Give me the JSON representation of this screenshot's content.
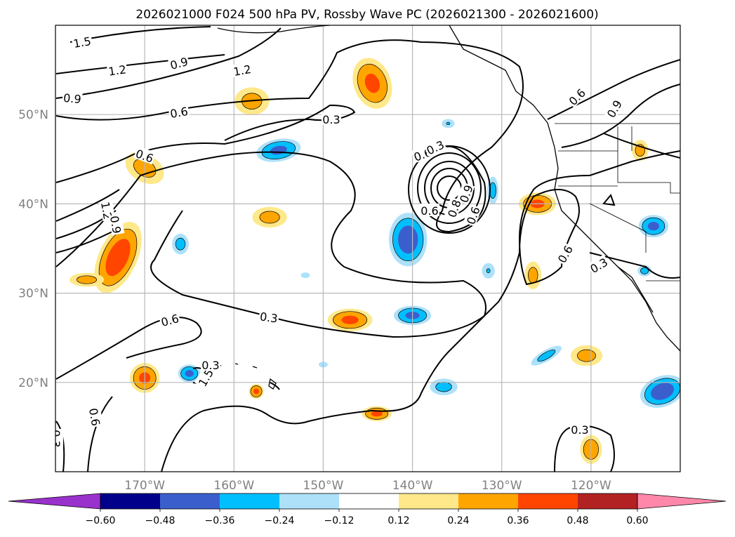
{
  "chart_data": {
    "type": "map-contour",
    "title": "2026021000 F024 500 hPa PV, Rossby Wave PC (2026021300 - 2026021600)",
    "xlim": [
      -180,
      -110
    ],
    "ylim": [
      10,
      60
    ],
    "grid": true,
    "x_ticks": [
      {
        "value": -170,
        "label": "170°W"
      },
      {
        "value": -160,
        "label": "160°W"
      },
      {
        "value": -150,
        "label": "150°W"
      },
      {
        "value": -140,
        "label": "140°W"
      },
      {
        "value": -130,
        "label": "130°W"
      },
      {
        "value": -120,
        "label": "120°W"
      }
    ],
    "y_ticks": [
      {
        "value": 20,
        "label": "20°N"
      },
      {
        "value": 30,
        "label": "30°N"
      },
      {
        "value": 40,
        "label": "40°N"
      },
      {
        "value": 50,
        "label": "50°N"
      }
    ],
    "colorbar": {
      "extend": "both",
      "under_color": "#9932CC",
      "over_color": "#FF88AA",
      "colors": [
        "#00008B",
        "#3A5FCD",
        "#00BFFF",
        "#ADE1FA",
        "#FFFFFF",
        "#FFE88A",
        "#FFA500",
        "#FF4500",
        "#B22222"
      ],
      "ticks": [
        "−0.60",
        "−0.48",
        "−0.36",
        "−0.24",
        "−0.12",
        "0.12",
        "0.24",
        "0.36",
        "0.48",
        "0.60"
      ]
    },
    "contour_labels": [
      "1.5",
      "1.2",
      "0.9",
      "1.2",
      "0.9",
      "0.6",
      "0.3",
      "0.6",
      "0.6",
      "1.2",
      "0.9",
      "0.6",
      "0.3",
      "0.6",
      "0.3",
      "1.5",
      "0.8",
      "0.9",
      "0.6",
      "0.3",
      "0.6",
      "0.3",
      "0.6",
      "0.9",
      "0.3",
      "0.6",
      "0.3"
    ],
    "pv_anomalies": [
      {
        "lon": -144.5,
        "lat": 53.5,
        "rx": 2.5,
        "ry": 3.5,
        "value": 0.4,
        "rot": -20
      },
      {
        "lon": -158,
        "lat": 51.5,
        "rx": 2.5,
        "ry": 2,
        "value": 0.3,
        "rot": 0
      },
      {
        "lon": -170,
        "lat": 44,
        "rx": 3,
        "ry": 2,
        "value": 0.3,
        "rot": 30
      },
      {
        "lon": -173,
        "lat": 34,
        "rx": 2.5,
        "ry": 5,
        "value": 0.45,
        "rot": 25
      },
      {
        "lon": -176.5,
        "lat": 31.5,
        "rx": 2.5,
        "ry": 1,
        "value": 0.3,
        "rot": 0
      },
      {
        "lon": -156,
        "lat": 38.5,
        "rx": 2.5,
        "ry": 1.5,
        "value": 0.3,
        "rot": 0
      },
      {
        "lon": -147,
        "lat": 27,
        "rx": 3,
        "ry": 1.5,
        "value": 0.4,
        "rot": 0
      },
      {
        "lon": -170,
        "lat": 20.5,
        "rx": 2,
        "ry": 2,
        "value": 0.4,
        "rot": 0
      },
      {
        "lon": -157.5,
        "lat": 19,
        "rx": 1,
        "ry": 1,
        "value": 0.4,
        "rot": 0
      },
      {
        "lon": -144,
        "lat": 16.5,
        "rx": 2,
        "ry": 1,
        "value": 0.4,
        "rot": 0
      },
      {
        "lon": -126,
        "lat": 40,
        "rx": 2.5,
        "ry": 1.5,
        "value": 0.4,
        "rot": 0
      },
      {
        "lon": -126.5,
        "lat": 32,
        "rx": 1.2,
        "ry": 2,
        "value": 0.3,
        "rot": 0
      },
      {
        "lon": -120.5,
        "lat": 23,
        "rx": 2.3,
        "ry": 1.5,
        "value": 0.3,
        "rot": 0
      },
      {
        "lon": -120,
        "lat": 12.5,
        "rx": 1.5,
        "ry": 2,
        "value": 0.35,
        "rot": 0
      },
      {
        "lon": -114.5,
        "lat": 46,
        "rx": 1.2,
        "ry": 1.5,
        "value": 0.3,
        "rot": 0
      },
      {
        "lon": -155,
        "lat": 46,
        "rx": 3,
        "ry": 1.5,
        "value": -0.4,
        "rot": -10
      },
      {
        "lon": -140.5,
        "lat": 36,
        "rx": 2.5,
        "ry": 3.5,
        "value": -0.45,
        "rot": 0
      },
      {
        "lon": -140,
        "lat": 27.5,
        "rx": 2.5,
        "ry": 1.3,
        "value": -0.4,
        "rot": 0
      },
      {
        "lon": -166,
        "lat": 35.5,
        "rx": 1.2,
        "ry": 1.5,
        "value": -0.3,
        "rot": 0
      },
      {
        "lon": -165,
        "lat": 21,
        "rx": 1.5,
        "ry": 1.2,
        "value": -0.4,
        "rot": 0
      },
      {
        "lon": -131,
        "lat": 41.5,
        "rx": 0.8,
        "ry": 2,
        "value": -0.3,
        "rot": 0
      },
      {
        "lon": -131.5,
        "lat": 32.5,
        "rx": 1,
        "ry": 1.2,
        "value": -0.25,
        "rot": 0
      },
      {
        "lon": -125,
        "lat": 23,
        "rx": 2.5,
        "ry": 0.8,
        "value": -0.3,
        "rot": -30
      },
      {
        "lon": -136.5,
        "lat": 19.5,
        "rx": 2,
        "ry": 1.2,
        "value": -0.3,
        "rot": 0
      },
      {
        "lon": -113,
        "lat": 37.5,
        "rx": 2,
        "ry": 1.5,
        "value": -0.4,
        "rot": 0
      },
      {
        "lon": -112,
        "lat": 19,
        "rx": 3,
        "ry": 2,
        "value": -0.45,
        "rot": -20
      },
      {
        "lon": -114,
        "lat": 32.5,
        "rx": 1,
        "ry": 0.8,
        "value": -0.3,
        "rot": 0
      },
      {
        "lon": -136,
        "lat": 49,
        "rx": 1,
        "ry": 0.7,
        "value": -0.25,
        "rot": 0
      },
      {
        "lon": -152,
        "lat": 32,
        "rx": 0.8,
        "ry": 0.5,
        "value": -0.2,
        "rot": 0
      },
      {
        "lon": -150,
        "lat": 22,
        "rx": 0.8,
        "ry": 0.5,
        "value": -0.2,
        "rot": 0
      }
    ]
  }
}
